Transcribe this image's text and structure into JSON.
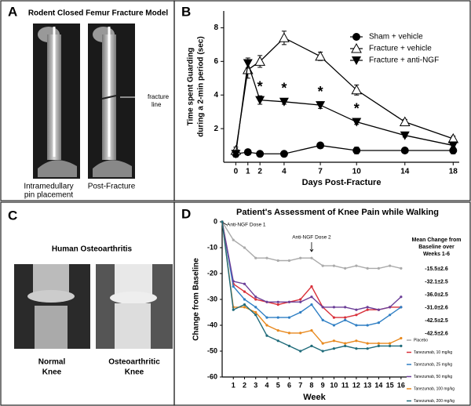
{
  "panels": {
    "A": {
      "letter": "A",
      "title": "Rodent Closed Femur Fracture Model",
      "arrow_label": [
        "fracture",
        "line"
      ],
      "captions": [
        [
          "Intramedullary",
          "pin placement"
        ],
        [
          "Post-Fracture"
        ]
      ]
    },
    "B": {
      "letter": "B"
    },
    "C": {
      "letter": "C",
      "title": "Human Osteoarthritis",
      "captions": [
        [
          "Normal",
          "Knee"
        ],
        [
          "Osteoarthritic",
          "Knee"
        ]
      ]
    },
    "D": {
      "letter": "D",
      "side_title": [
        "Mean Change from",
        "Baseline over",
        "Weeks 1-6"
      ],
      "side_values": [
        "-15.5±2.6",
        "-32.1±2.5",
        "-36.0±2.5",
        "-31.0±2.6",
        "-42.5±2.5",
        "-42.5±2.6"
      ]
    }
  },
  "chart_data": [
    {
      "type": "line",
      "ylabel": [
        "Time spent Guarding",
        "during a 2-min period (sec)"
      ],
      "xlabel": "Days Post-Fracture",
      "x": [
        0,
        1,
        2,
        4,
        7,
        10,
        14,
        18
      ],
      "xlim": [
        -1,
        18.5
      ],
      "xticks": [
        0,
        1,
        2,
        4,
        7,
        10,
        14,
        18
      ],
      "ylim": [
        0,
        9
      ],
      "yticks": [
        2,
        4,
        6,
        8
      ],
      "series": [
        {
          "name": "Sham + vehicle",
          "color": "#000000",
          "marker": "circle",
          "values": [
            0.5,
            0.6,
            0.5,
            0.5,
            1.0,
            0.7,
            0.7,
            0.7
          ],
          "errors": [
            0.1,
            0.1,
            0.1,
            0.1,
            0.15,
            0.2,
            0.1,
            0.2
          ]
        },
        {
          "name": "Fracture + vehicle",
          "color": "#000000",
          "marker": "triangle-open",
          "values": [
            0.7,
            5.5,
            6.0,
            7.4,
            6.3,
            4.3,
            2.4,
            1.4
          ],
          "errors": [
            0.2,
            0.5,
            0.35,
            0.4,
            0.25,
            0.3,
            0.15,
            0.15
          ]
        },
        {
          "name": "Fracture + anti-NGF",
          "color": "#000000",
          "marker": "triangle-down",
          "values": [
            0.5,
            5.9,
            3.7,
            3.6,
            3.4,
            2.4,
            1.6,
            1.0
          ],
          "errors": [
            0.2,
            0.3,
            0.25,
            0.15,
            0.2,
            0.15,
            0.1,
            0.1
          ]
        }
      ],
      "annotations": [
        {
          "text": "*",
          "x": 2
        },
        {
          "text": "*",
          "x": 4
        },
        {
          "text": "*",
          "x": 7
        },
        {
          "text": "*",
          "x": 10
        }
      ]
    },
    {
      "type": "line",
      "title": "Patient's Assessment of Knee Pain while Walking",
      "ylabel": "Change from Baseline",
      "xlabel": "Week",
      "x": [
        0,
        1,
        2,
        3,
        4,
        5,
        6,
        7,
        8,
        9,
        10,
        11,
        12,
        13,
        14,
        15,
        16
      ],
      "xlim": [
        0,
        16.5
      ],
      "xticks": [
        1,
        2,
        3,
        4,
        5,
        6,
        7,
        8,
        9,
        10,
        11,
        12,
        13,
        14,
        15,
        16
      ],
      "ylim": [
        -60,
        0
      ],
      "yticks": [
        0,
        -10,
        -20,
        -30,
        -40,
        -50,
        -60
      ],
      "series": [
        {
          "name": "Placebo",
          "color": "#aaaaaa",
          "marker": "dot",
          "values": [
            0,
            -7,
            -10,
            -14,
            -14,
            -15,
            -15,
            -14,
            -14,
            -17,
            -17,
            -18,
            -17,
            -18,
            -18,
            -17,
            -18
          ]
        },
        {
          "name": "Tanezumab, 10 mg/kg",
          "color": "#d9303a",
          "marker": "dot",
          "values": [
            0,
            -24,
            -27,
            -30,
            -31,
            -32,
            -31,
            -30,
            -25,
            -33,
            -37,
            -37,
            -36,
            -34,
            -34,
            -33,
            -33
          ]
        },
        {
          "name": "Tanezumab, 25 mg/kg",
          "color": "#2f7fc4",
          "marker": "dot",
          "values": [
            0,
            -25,
            -30,
            -33,
            -37,
            -37,
            -37,
            -35,
            -32,
            -38,
            -40,
            -38,
            -40,
            -40,
            -39,
            -36,
            -33
          ]
        },
        {
          "name": "Tanezumab, 50 mg/kg",
          "color": "#6c3f98",
          "marker": "dot",
          "values": [
            0,
            -23,
            -24,
            -29,
            -31,
            -31,
            -31,
            -31,
            -29,
            -33,
            -33,
            -33,
            -34,
            -33,
            -34,
            -33,
            -29
          ]
        },
        {
          "name": "Tanezumab, 100 mg/kg",
          "color": "#e8891e",
          "marker": "dot",
          "values": [
            0,
            -33,
            -33,
            -35,
            -40,
            -42,
            -43,
            -43,
            -42,
            -47,
            -46,
            -47,
            -46,
            -47,
            -47,
            -47,
            -45
          ]
        },
        {
          "name": "Tanezumab, 200 mg/kg",
          "color": "#1f6b7a",
          "marker": "dot",
          "values": [
            0,
            -34,
            -32,
            -36,
            -44,
            -46,
            -48,
            -50,
            -48,
            -50,
            -49,
            -48,
            -49,
            -49,
            -48,
            -48,
            -48
          ]
        }
      ],
      "annotations": [
        {
          "text": "Anti-NGF Dose 1",
          "x": 0
        },
        {
          "text": "Anti-NGF Dose 2",
          "x": 8
        }
      ]
    }
  ]
}
